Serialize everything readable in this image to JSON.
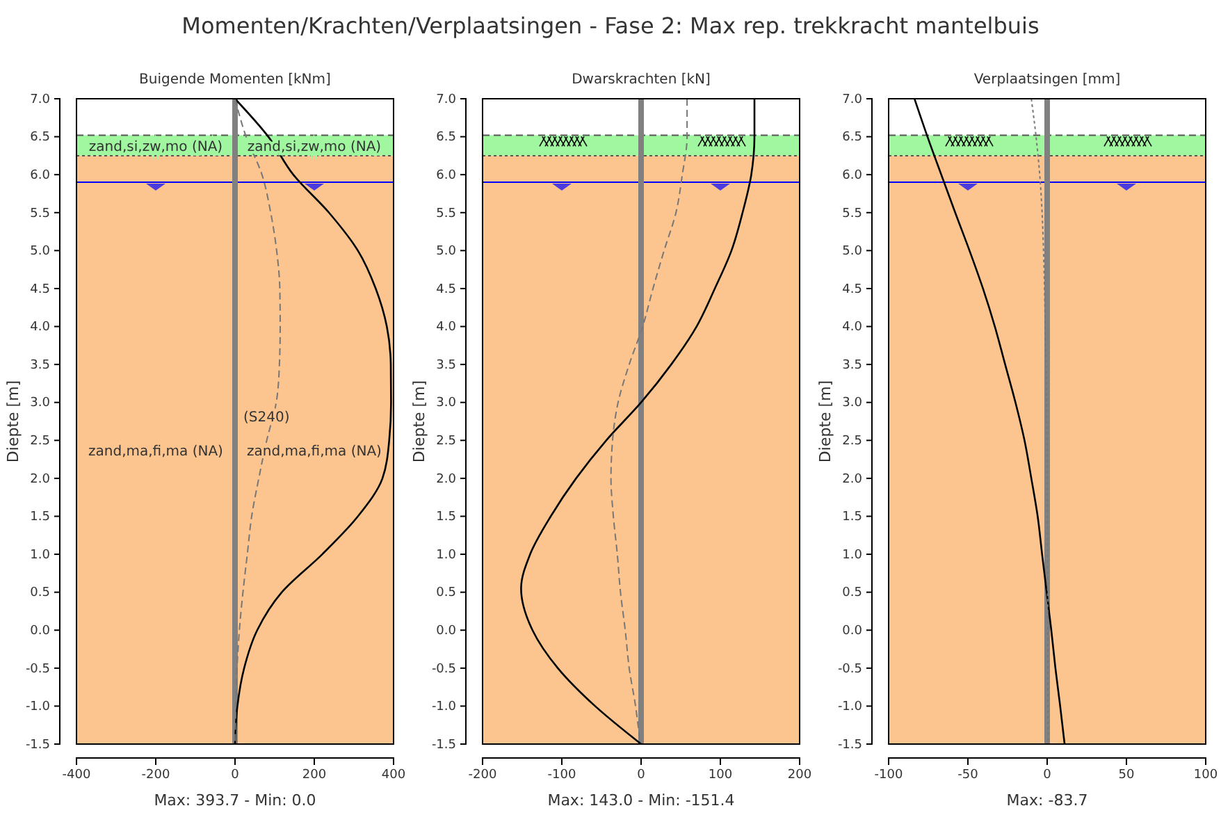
{
  "chart_data": [
    {
      "type": "line",
      "title": "Momenten/Krachten/Verplaatsingen - Fase 2: Max rep. trekkracht mantelbuis",
      "subtitle": "Buigende Momenten [kNm]",
      "xlabel": "Max: 393.7 - Min: 0.0",
      "ylabel": "Diepte [m]",
      "xlim": [
        -400,
        400
      ],
      "xticks": [
        -400,
        -200,
        0,
        200,
        400
      ],
      "ylim": [
        -1.5,
        7
      ],
      "yticks": [
        {
          "value": 7,
          "label": "7.0"
        },
        {
          "value": 6.5,
          "label": "6.5"
        },
        {
          "value": 6,
          "label": "6.0"
        },
        {
          "value": 5.5,
          "label": "5.5"
        },
        {
          "value": 5,
          "label": "5.0"
        },
        {
          "value": 4.5,
          "label": "4.5"
        },
        {
          "value": 4,
          "label": "4.0"
        },
        {
          "value": 3.5,
          "label": "3.5"
        },
        {
          "value": 3,
          "label": "3.0"
        },
        {
          "value": 2.5,
          "label": "2.5"
        },
        {
          "value": 2,
          "label": "2.0"
        },
        {
          "value": 1.5,
          "label": "1.5"
        },
        {
          "value": 1,
          "label": "1.0"
        },
        {
          "value": 0.5,
          "label": "0.5"
        },
        {
          "value": 0,
          "label": "0.0"
        },
        {
          "value": -0.5,
          "label": "-0.5"
        },
        {
          "value": -1,
          "label": "-1.0"
        },
        {
          "value": -1.5,
          "label": "-1.5"
        }
      ],
      "bands": [
        {
          "axis": "y",
          "from": -1.5,
          "to": 6.25,
          "color": "#fcc48e",
          "label": "zand,ma,fi,ma (NA)"
        },
        {
          "axis": "y",
          "from": 6.25,
          "to": 6.52,
          "color": "#a0f7a0",
          "label": "zand,si,zw,mo (NA)"
        }
      ],
      "ref_lines": [
        {
          "axis": "y",
          "value": 6.52,
          "color": "#555555",
          "line_style": "dashed"
        },
        {
          "axis": "y",
          "value": 6.25,
          "color": "#555555",
          "line_style": "dotted"
        },
        {
          "axis": "y",
          "value": 5.9,
          "color": "#0000ff",
          "line_style": "solid"
        },
        {
          "axis": "x",
          "value": 0,
          "color": "#808080",
          "line_style": "solid"
        }
      ],
      "annotations": [
        {
          "text": "(S240)",
          "x": 0,
          "y": 2.75
        }
      ],
      "series": [
        {
          "color": "#000000",
          "line_style": "solid",
          "x": [
            0,
            84,
            147,
            237,
            310,
            355,
            383,
            393,
            393.7,
            389,
            372,
            310,
            220,
            118,
            56,
            23,
            6,
            0
          ],
          "values": [
            7,
            6.5,
            6,
            5.5,
            5,
            4.5,
            4,
            3.5,
            3,
            2.5,
            2,
            1.5,
            1,
            0.5,
            0,
            -0.5,
            -1,
            -1.5
          ]
        },
        {
          "color": "#777777",
          "line_style": "dashed",
          "x": [
            0,
            28,
            68,
            90,
            105,
            113,
            114,
            112,
            104,
            80,
            60,
            42,
            31,
            20,
            11,
            5,
            2,
            0
          ],
          "values": [
            7,
            6.5,
            6,
            5.5,
            5,
            4.5,
            4,
            3.5,
            3,
            2.5,
            2,
            1.5,
            1,
            0.5,
            0,
            -0.5,
            -1,
            -1.5
          ]
        }
      ]
    },
    {
      "type": "line",
      "subtitle": "Dwarskrachten [kN]",
      "xlabel": "Max: 143.0 - Min: -151.4",
      "ylabel": "Diepte [m]",
      "xlim": [
        -200,
        200
      ],
      "xticks": [
        -200,
        -100,
        0,
        100,
        200
      ],
      "ylim": [
        -1.5,
        7
      ],
      "yticks": [
        {
          "value": 7,
          "label": "7.0"
        },
        {
          "value": 6.5,
          "label": "6.5"
        },
        {
          "value": 6,
          "label": "6.0"
        },
        {
          "value": 5.5,
          "label": "5.5"
        },
        {
          "value": 5,
          "label": "5.0"
        },
        {
          "value": 4.5,
          "label": "4.5"
        },
        {
          "value": 4,
          "label": "4.0"
        },
        {
          "value": 3.5,
          "label": "3.5"
        },
        {
          "value": 3,
          "label": "3.0"
        },
        {
          "value": 2.5,
          "label": "2.5"
        },
        {
          "value": 2,
          "label": "2.0"
        },
        {
          "value": 1.5,
          "label": "1.5"
        },
        {
          "value": 1,
          "label": "1.0"
        },
        {
          "value": 0.5,
          "label": "0.5"
        },
        {
          "value": 0,
          "label": "0.0"
        },
        {
          "value": -0.5,
          "label": "-0.5"
        },
        {
          "value": -1,
          "label": "-1.0"
        },
        {
          "value": -1.5,
          "label": "-1.5"
        }
      ],
      "bands": [
        {
          "axis": "y",
          "from": -1.5,
          "to": 6.25,
          "color": "#fcc48e"
        },
        {
          "axis": "y",
          "from": 6.25,
          "to": 6.52,
          "color": "#a0f7a0"
        }
      ],
      "ref_lines": [
        {
          "axis": "y",
          "value": 6.52,
          "color": "#555555",
          "line_style": "dashed"
        },
        {
          "axis": "y",
          "value": 6.25,
          "color": "#555555",
          "line_style": "dotted"
        },
        {
          "axis": "y",
          "value": 5.9,
          "color": "#0000ff",
          "line_style": "solid"
        },
        {
          "axis": "x",
          "value": 0,
          "color": "#808080",
          "line_style": "solid"
        }
      ],
      "series": [
        {
          "color": "#000000",
          "line_style": "solid",
          "x": [
            143,
            143,
            139,
            128,
            114,
            93,
            70,
            38,
            0,
            -44,
            -82,
            -114,
            -140,
            -151.4,
            -137,
            -105,
            -58,
            0
          ],
          "values": [
            7,
            6.5,
            6,
            5.5,
            5,
            4.5,
            4,
            3.5,
            3,
            2.5,
            2,
            1.5,
            1,
            0.55,
            0,
            -0.5,
            -1,
            -1.5
          ]
        },
        {
          "color": "#777777",
          "line_style": "dashed",
          "x": [
            58,
            58,
            52,
            44,
            29,
            15,
            2,
            -15,
            -29,
            -36,
            -38,
            -35,
            -30,
            -26,
            -20,
            -15,
            -7,
            -1
          ],
          "values": [
            7,
            6.5,
            6,
            5.5,
            5,
            4.5,
            4,
            3.5,
            3,
            2.5,
            2,
            1.5,
            1,
            0.5,
            0,
            -0.5,
            -1,
            -1.5
          ]
        }
      ]
    },
    {
      "type": "line",
      "subtitle": "Verplaatsingen [mm]",
      "xlabel": "Max: -83.7",
      "ylabel": "Diepte [m]",
      "xlim": [
        -100,
        100
      ],
      "xticks": [
        -100,
        -50,
        0,
        50,
        100
      ],
      "ylim": [
        -1.5,
        7
      ],
      "yticks": [
        {
          "value": 7,
          "label": "7.0"
        },
        {
          "value": 6.5,
          "label": "6.5"
        },
        {
          "value": 6,
          "label": "6.0"
        },
        {
          "value": 5.5,
          "label": "5.5"
        },
        {
          "value": 5,
          "label": "5.0"
        },
        {
          "value": 4.5,
          "label": "4.5"
        },
        {
          "value": 4,
          "label": "4.0"
        },
        {
          "value": 3.5,
          "label": "3.5"
        },
        {
          "value": 3,
          "label": "3.0"
        },
        {
          "value": 2.5,
          "label": "2.5"
        },
        {
          "value": 2,
          "label": "2.0"
        },
        {
          "value": 1.5,
          "label": "1.5"
        },
        {
          "value": 1,
          "label": "1.0"
        },
        {
          "value": 0.5,
          "label": "0.5"
        },
        {
          "value": 0,
          "label": "0.0"
        },
        {
          "value": -0.5,
          "label": "-0.5"
        },
        {
          "value": -1,
          "label": "-1.0"
        },
        {
          "value": -1.5,
          "label": "-1.5"
        }
      ],
      "bands": [
        {
          "axis": "y",
          "from": -1.5,
          "to": 6.25,
          "color": "#fcc48e"
        },
        {
          "axis": "y",
          "from": 6.25,
          "to": 6.52,
          "color": "#a0f7a0"
        }
      ],
      "ref_lines": [
        {
          "axis": "y",
          "value": 6.52,
          "color": "#555555",
          "line_style": "dashed"
        },
        {
          "axis": "y",
          "value": 6.25,
          "color": "#555555",
          "line_style": "dotted"
        },
        {
          "axis": "y",
          "value": 5.9,
          "color": "#0000ff",
          "line_style": "solid"
        },
        {
          "axis": "x",
          "value": 0,
          "color": "#808080",
          "line_style": "solid"
        }
      ],
      "series": [
        {
          "color": "#000000",
          "line_style": "solid",
          "x": [
            -83.7,
            -75.5,
            -66.8,
            -58,
            -49,
            -40.5,
            -33,
            -26.5,
            -20,
            -14.3,
            -10,
            -6,
            -3.2,
            -0.3,
            2.6,
            5.2,
            8.2,
            11
          ],
          "values": [
            7,
            6.5,
            6,
            5.5,
            5,
            4.5,
            4,
            3.5,
            3,
            2.5,
            2,
            1.5,
            1,
            0.5,
            0,
            -0.5,
            -1,
            -1.5
          ]
        },
        {
          "color": "#777777",
          "line_style": "dotted",
          "x": [
            -10,
            -7,
            -4.7,
            -3.2,
            -2.3,
            -1.2,
            -0.3,
            0,
            0.5
          ],
          "values": [
            7,
            6.5,
            6,
            5.5,
            5,
            4,
            3,
            2,
            -1.5
          ]
        }
      ]
    }
  ]
}
